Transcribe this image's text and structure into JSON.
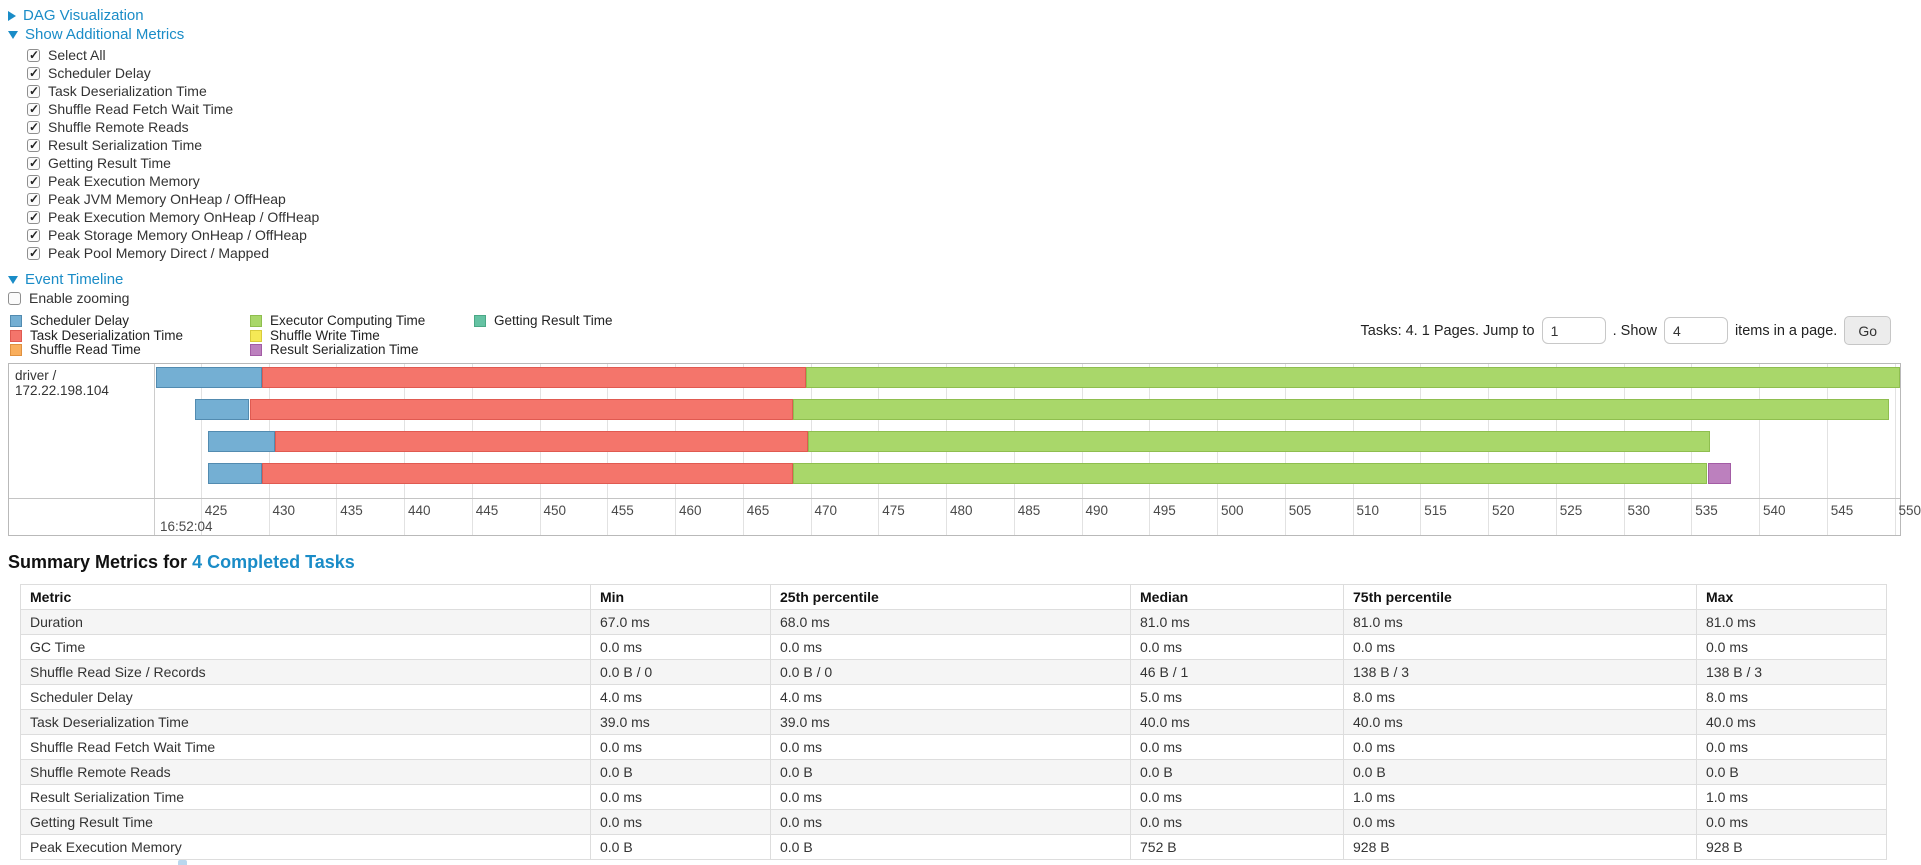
{
  "toggles": {
    "dag_visualization": "DAG Visualization",
    "show_additional_metrics": "Show Additional Metrics",
    "event_timeline": "Event Timeline"
  },
  "metrics_panel": {
    "items": [
      {
        "label": "Select All",
        "checked": true
      },
      {
        "label": "Scheduler Delay",
        "checked": true
      },
      {
        "label": "Task Deserialization Time",
        "checked": true
      },
      {
        "label": "Shuffle Read Fetch Wait Time",
        "checked": true
      },
      {
        "label": "Shuffle Remote Reads",
        "checked": true
      },
      {
        "label": "Result Serialization Time",
        "checked": true
      },
      {
        "label": "Getting Result Time",
        "checked": true
      },
      {
        "label": "Peak Execution Memory",
        "checked": true
      },
      {
        "label": "Peak JVM Memory OnHeap / OffHeap",
        "checked": true
      },
      {
        "label": "Peak Execution Memory OnHeap / OffHeap",
        "checked": true
      },
      {
        "label": "Peak Storage Memory OnHeap / OffHeap",
        "checked": true
      },
      {
        "label": "Peak Pool Memory Direct / Mapped",
        "checked": true
      }
    ]
  },
  "enable_zooming": {
    "label": "Enable zooming",
    "checked": false
  },
  "pagination": {
    "prefix_text": "Tasks: 4. 1 Pages. Jump to",
    "jump_value": "1",
    "middle_text": ". Show",
    "show_value": "4",
    "suffix_text": "items in a page.",
    "go_label": "Go"
  },
  "chart_data": {
    "type": "timeline",
    "group_label": "driver / 172.22.198.104",
    "legend": [
      {
        "key": "scheduler_delay",
        "label": "Scheduler Delay",
        "color": "#74AFD3",
        "border": "#528BB0"
      },
      {
        "key": "task_deserialization",
        "label": "Task Deserialization Time",
        "color": "#F4756B",
        "border": "#E05A51"
      },
      {
        "key": "shuffle_read",
        "label": "Shuffle Read Time",
        "color": "#F9AE5C",
        "border": "#E0913F"
      },
      {
        "key": "executor_computing",
        "label": "Executor Computing Time",
        "color": "#A9D76A",
        "border": "#8FBE4F"
      },
      {
        "key": "shuffle_write",
        "label": "Shuffle Write Time",
        "color": "#F5E956",
        "border": "#D9CC3C"
      },
      {
        "key": "result_serialization",
        "label": "Result Serialization Time",
        "color": "#BC80BE",
        "border": "#A35CA5"
      },
      {
        "key": "getting_result",
        "label": "Getting Result Time",
        "color": "#65C2A3",
        "border": "#4BA886"
      }
    ],
    "axis": {
      "tick_start_ms": 425,
      "tick_end_ms": 550,
      "tick_step_ms": 5,
      "window_start_ms": 421.7,
      "window_end_ms": 550.5,
      "base_time_label": "16:52:04"
    },
    "tasks": [
      {
        "segments": [
          {
            "key": "scheduler_delay",
            "start_ms": 421.7,
            "end_ms": 429.5
          },
          {
            "key": "task_deserialization",
            "start_ms": 429.5,
            "end_ms": 469.7
          },
          {
            "key": "executor_computing",
            "start_ms": 469.7,
            "end_ms": 550.4
          }
        ]
      },
      {
        "segments": [
          {
            "key": "scheduler_delay",
            "start_ms": 424.6,
            "end_ms": 428.6
          },
          {
            "key": "task_deserialization",
            "start_ms": 428.6,
            "end_ms": 468.7
          },
          {
            "key": "executor_computing",
            "start_ms": 468.7,
            "end_ms": 549.6
          }
        ]
      },
      {
        "segments": [
          {
            "key": "scheduler_delay",
            "start_ms": 425.5,
            "end_ms": 430.5
          },
          {
            "key": "task_deserialization",
            "start_ms": 430.5,
            "end_ms": 469.8
          },
          {
            "key": "executor_computing",
            "start_ms": 469.8,
            "end_ms": 536.4
          }
        ]
      },
      {
        "segments": [
          {
            "key": "scheduler_delay",
            "start_ms": 425.5,
            "end_ms": 429.5
          },
          {
            "key": "task_deserialization",
            "start_ms": 429.5,
            "end_ms": 468.7
          },
          {
            "key": "executor_computing",
            "start_ms": 468.7,
            "end_ms": 536.2
          },
          {
            "key": "result_serialization",
            "start_ms": 536.2,
            "end_ms": 537.9
          }
        ]
      }
    ]
  },
  "summary": {
    "title_prefix": "Summary Metrics for ",
    "title_link": "4 Completed Tasks",
    "columns": [
      "Metric",
      "Min",
      "25th percentile",
      "Median",
      "75th percentile",
      "Max"
    ],
    "rows": [
      {
        "metric": "Duration",
        "values": [
          "67.0 ms",
          "68.0 ms",
          "81.0 ms",
          "81.0 ms",
          "81.0 ms"
        ]
      },
      {
        "metric": "GC Time",
        "values": [
          "0.0 ms",
          "0.0 ms",
          "0.0 ms",
          "0.0 ms",
          "0.0 ms"
        ]
      },
      {
        "metric": "Shuffle Read Size / Records",
        "values": [
          "0.0 B / 0",
          "0.0 B / 0",
          "46 B / 1",
          "138 B / 3",
          "138 B / 3"
        ]
      },
      {
        "metric": "Scheduler Delay",
        "values": [
          "4.0 ms",
          "4.0 ms",
          "5.0 ms",
          "8.0 ms",
          "8.0 ms"
        ]
      },
      {
        "metric": "Task Deserialization Time",
        "values": [
          "39.0 ms",
          "39.0 ms",
          "40.0 ms",
          "40.0 ms",
          "40.0 ms"
        ]
      },
      {
        "metric": "Shuffle Read Fetch Wait Time",
        "values": [
          "0.0 ms",
          "0.0 ms",
          "0.0 ms",
          "0.0 ms",
          "0.0 ms"
        ]
      },
      {
        "metric": "Shuffle Remote Reads",
        "values": [
          "0.0 B",
          "0.0 B",
          "0.0 B",
          "0.0 B",
          "0.0 B"
        ]
      },
      {
        "metric": "Result Serialization Time",
        "values": [
          "0.0 ms",
          "0.0 ms",
          "0.0 ms",
          "1.0 ms",
          "1.0 ms"
        ]
      },
      {
        "metric": "Getting Result Time",
        "values": [
          "0.0 ms",
          "0.0 ms",
          "0.0 ms",
          "0.0 ms",
          "0.0 ms"
        ]
      },
      {
        "metric": "Peak Execution Memory",
        "values": [
          "0.0 B",
          "0.0 B",
          "752 B",
          "928 B",
          "928 B"
        ]
      }
    ]
  }
}
